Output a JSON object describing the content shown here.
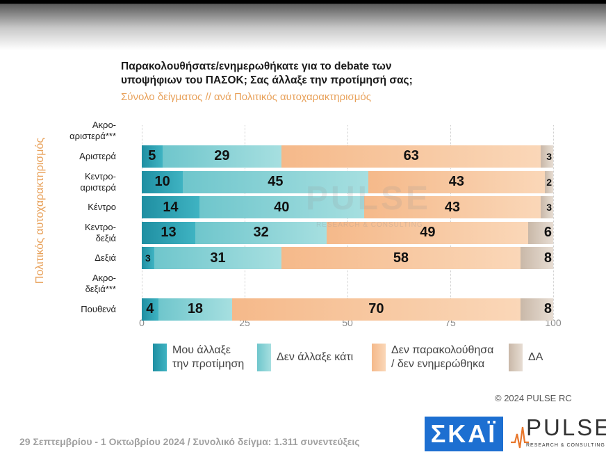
{
  "title_line1": "Παρακολουθήσατε/ενημερωθήκατε για το debate των",
  "title_line2": "υποψήφιων του ΠΑΣΟΚ;  Σας άλλαξε την προτίμησή σας;",
  "subtitle": "Σύνολο δείγματος // ανά Πολιτικός αυτοχαρακτηρισμός",
  "yaxis_title": "Πολιτικός αυτοχαρακτηρισμός",
  "watermark": "PULSE",
  "watermark_sub": "RESEARCH & CONSULTING",
  "copyright": "© 2024 PULSE RC",
  "footer": "29 Σεπτεμβρίου - 1 Οκτωβρίου 2024  /  Συνολικό δείγμα:  1.311 συνεντεύξεις",
  "logo_skai": "ΣΚΑΪ",
  "logo_pulse": "PULSE",
  "logo_pulse_sub": "RESEARCH & CONSULTING",
  "colors": {
    "changed": "#2aa0b2",
    "not_changed": "#8fd3d6",
    "not_followed": "#f7c8a0",
    "dk": "#d8cbbf",
    "accent": "#e8a15a"
  },
  "chart_data": {
    "type": "bar",
    "orientation": "horizontal",
    "stacked": true,
    "xlim": [
      0,
      100
    ],
    "xticks": [
      "0",
      "25",
      "50",
      "75",
      "100"
    ],
    "categories": [
      [
        "Ακρο-",
        "αριστερά***"
      ],
      [
        "Αριστερά"
      ],
      [
        "Κεντρο-",
        "αριστερά"
      ],
      [
        "Κέντρο"
      ],
      [
        "Κεντρο-",
        "δεξιά"
      ],
      [
        "Δεξιά"
      ],
      [
        "Ακρο-",
        "δεξιά***"
      ],
      [
        "Πουθενά"
      ]
    ],
    "series": [
      {
        "name_lines": [
          "Μου άλλαξε",
          "την προτίμηση"
        ],
        "values": [
          null,
          5,
          10,
          14,
          13,
          3,
          null,
          4
        ]
      },
      {
        "name_lines": [
          "Δεν άλλαξε κάτι"
        ],
        "values": [
          null,
          29,
          45,
          40,
          32,
          31,
          null,
          18
        ]
      },
      {
        "name_lines": [
          "Δεν παρακολούθησα",
          "/ δεν ενημερώθηκα"
        ],
        "values": [
          null,
          63,
          43,
          43,
          49,
          58,
          null,
          70
        ]
      },
      {
        "name_lines": [
          "ΔΑ"
        ],
        "values": [
          null,
          3,
          2,
          3,
          6,
          8,
          null,
          8
        ]
      }
    ],
    "grid": true,
    "legend_position": "bottom"
  }
}
